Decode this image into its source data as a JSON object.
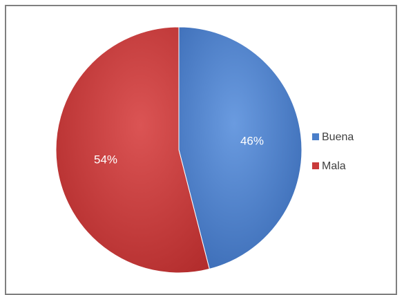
{
  "chart_data": {
    "type": "pie",
    "title": "",
    "legend_position": "right",
    "slices": [
      {
        "name": "Buena",
        "value": 46,
        "label": "46%",
        "color": "#4a7ec9"
      },
      {
        "name": "Mala",
        "value": 54,
        "label": "54%",
        "color": "#c93a3a"
      }
    ]
  }
}
